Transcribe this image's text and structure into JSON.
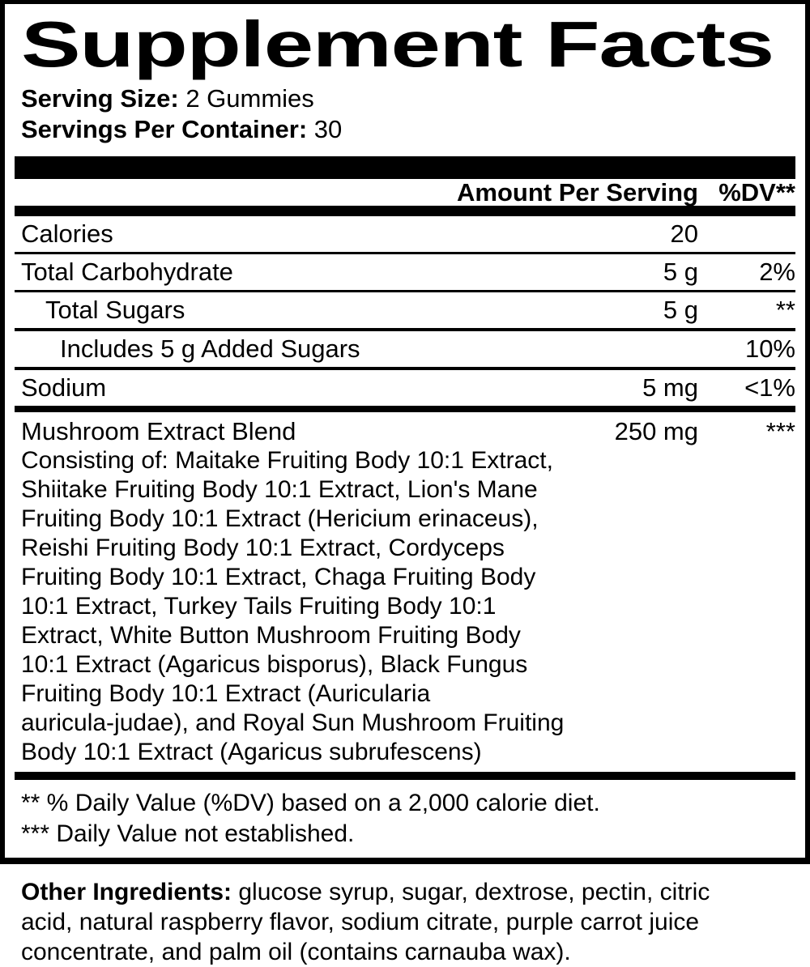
{
  "label": {
    "title": "Supplement Facts",
    "serving_size_label": "Serving Size:",
    "serving_size_value": "2 Gummies",
    "servings_per_container_label": "Servings Per Container:",
    "servings_per_container_value": "30",
    "columns": {
      "amount_header": "Amount Per Serving",
      "dv_header": "%DV**"
    },
    "rows": [
      {
        "name": "Calories",
        "amount": "20",
        "dv": ""
      },
      {
        "name": "Total Carbohydrate",
        "amount": "5 g",
        "dv": "2%"
      },
      {
        "name": "Total Sugars",
        "amount": "5 g",
        "dv": "**"
      },
      {
        "name": "Includes 5 g Added Sugars",
        "amount": "",
        "dv": "10%"
      },
      {
        "name": "Sodium",
        "amount": "5 mg",
        "dv": "<1%"
      }
    ],
    "blend": {
      "name": "Mushroom Extract Blend",
      "amount": "250 mg",
      "dv": "***",
      "description": "Consisting of: Maitake Fruiting Body 10:1 Extract,\nShiitake Fruiting Body 10:1 Extract, Lion's Mane\nFruiting Body 10:1 Extract (Hericium erinaceus),\nReishi Fruiting Body 10:1 Extract, Cordyceps\nFruiting Body 10:1 Extract, Chaga Fruiting Body\n10:1 Extract, Turkey Tails Fruiting Body 10:1\nExtract, White Button Mushroom Fruiting Body\n10:1 Extract (Agaricus bisporus), Black Fungus\nFruiting Body 10:1 Extract (Auricularia\nauricula-judae), and Royal Sun Mushroom Fruiting\nBody 10:1 Extract (Agaricus subrufescens)"
    },
    "footnotes": [
      "** % Daily Value (%DV) based on a 2,000 calorie diet.",
      "*** Daily Value not established."
    ],
    "other_ingredients_label": "Other Ingredients:",
    "other_ingredients_text": "glucose syrup, sugar, dextrose, pectin, citric\nacid, natural raspberry flavor, sodium citrate, purple carrot juice\nconcentrate, and palm oil (contains carnauba wax).",
    "colors": {
      "ink": "#000000",
      "background": "#ffffff"
    }
  }
}
